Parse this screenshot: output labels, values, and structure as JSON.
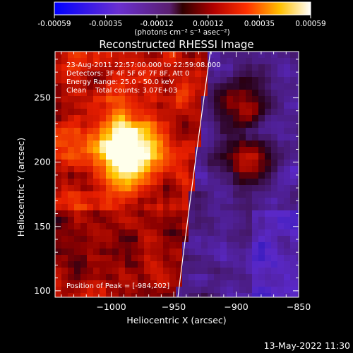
{
  "colorbar": {
    "ticks": [
      "-0.00059",
      "-0.00035",
      "-0.00012",
      "0.00012",
      "0.00035",
      "0.00059"
    ],
    "units": "(photons cm⁻² s⁻¹ asec⁻²)"
  },
  "plot": {
    "title": "Reconstructed RHESSI Image",
    "xlabel": "Heliocentric X (arcsec)",
    "ylabel": "Heliocentric Y (arcsec)",
    "xlim": [
      -1045,
      -850
    ],
    "ylim": [
      95,
      286
    ],
    "xticks": [
      -1000,
      -950,
      -900,
      -850
    ],
    "yticks": [
      100,
      150,
      200,
      250
    ],
    "xtick_labels": [
      "−1000",
      "−950",
      "−900",
      "−850"
    ],
    "ytick_labels": [
      "100",
      "150",
      "200",
      "250"
    ]
  },
  "annotations": {
    "line1": "23-Aug-2011 22:57:00.000 to 22:59:08.000",
    "line2": "Detectors: 3F 4F 5F 6F 7F 8F, Att 0",
    "line3": "Energy Range: 25.0 - 50.0 keV",
    "line4": "Clean    Total counts: 3.07E+03",
    "peak": "Position of Peak = [-984,202]"
  },
  "timestamp": "13-May-2022 11:30"
}
